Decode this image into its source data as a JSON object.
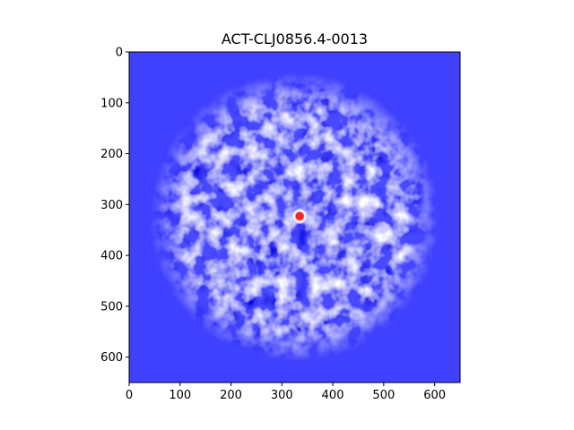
{
  "chart_data": {
    "type": "heatmap",
    "title": "ACT-CLJ0856.4-0013",
    "xlabel": "",
    "ylabel": "",
    "xlim": [
      0,
      650
    ],
    "ylim": [
      650,
      0
    ],
    "x_ticks": [
      0,
      100,
      200,
      300,
      400,
      500,
      600
    ],
    "y_ticks": [
      0,
      100,
      200,
      300,
      400,
      500,
      600
    ],
    "grid": false,
    "legend": "none",
    "colormap": "bwr",
    "background_color": "#4040ff",
    "footprint": {
      "center": [
        325,
        325
      ],
      "radius": 285
    },
    "source": {
      "x": 335,
      "y": 323
    }
  }
}
